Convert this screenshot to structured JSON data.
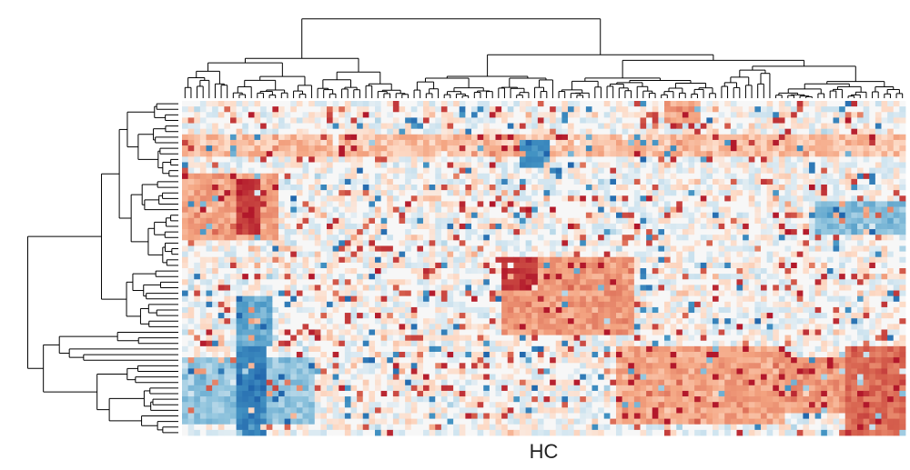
{
  "chart_data": {
    "type": "heatmap",
    "title": "",
    "xlabel": "HC",
    "ylabel": "",
    "legend": "none",
    "row_dendrogram": true,
    "col_dendrogram": true,
    "rows": 60,
    "cols": 120,
    "colormap": {
      "name": "RdBu_r",
      "negative_color": "#2166ac",
      "neutral_color": "#f7f7f7",
      "positive_color": "#b2182b"
    },
    "blocks": [
      {
        "rows": [
          14,
          24
        ],
        "cols": [
          9,
          13
        ],
        "value": 0.8
      },
      {
        "rows": [
          13,
          25
        ],
        "cols": [
          0,
          16
        ],
        "value": 0.3
      },
      {
        "rows": [
          28,
          34
        ],
        "cols": [
          53,
          59
        ],
        "value": 0.85
      },
      {
        "rows": [
          28,
          42
        ],
        "cols": [
          53,
          75
        ],
        "value": 0.35
      },
      {
        "rows": [
          35,
          44
        ],
        "cols": [
          9,
          15
        ],
        "value": -0.45
      },
      {
        "rows": [
          44,
          60
        ],
        "cols": [
          9,
          14
        ],
        "value": -0.75
      },
      {
        "rows": [
          46,
          58
        ],
        "cols": [
          0,
          22
        ],
        "value": -0.3
      },
      {
        "rows": [
          44,
          58
        ],
        "cols": [
          72,
          100
        ],
        "value": 0.3
      },
      {
        "rows": [
          44,
          60
        ],
        "cols": [
          110,
          120
        ],
        "value": 0.55
      },
      {
        "rows": [
          46,
          56
        ],
        "cols": [
          100,
          110
        ],
        "value": 0.35
      },
      {
        "rows": [
          7,
          12
        ],
        "cols": [
          56,
          61
        ],
        "value": -0.6
      },
      {
        "rows": [
          18,
          24
        ],
        "cols": [
          105,
          120
        ],
        "value": -0.35
      },
      {
        "rows": [
          6,
          10
        ],
        "cols": [
          0,
          120
        ],
        "value": 0.2
      },
      {
        "rows": [
          0,
          4
        ],
        "cols": [
          80,
          86
        ],
        "value": 0.3
      }
    ]
  }
}
